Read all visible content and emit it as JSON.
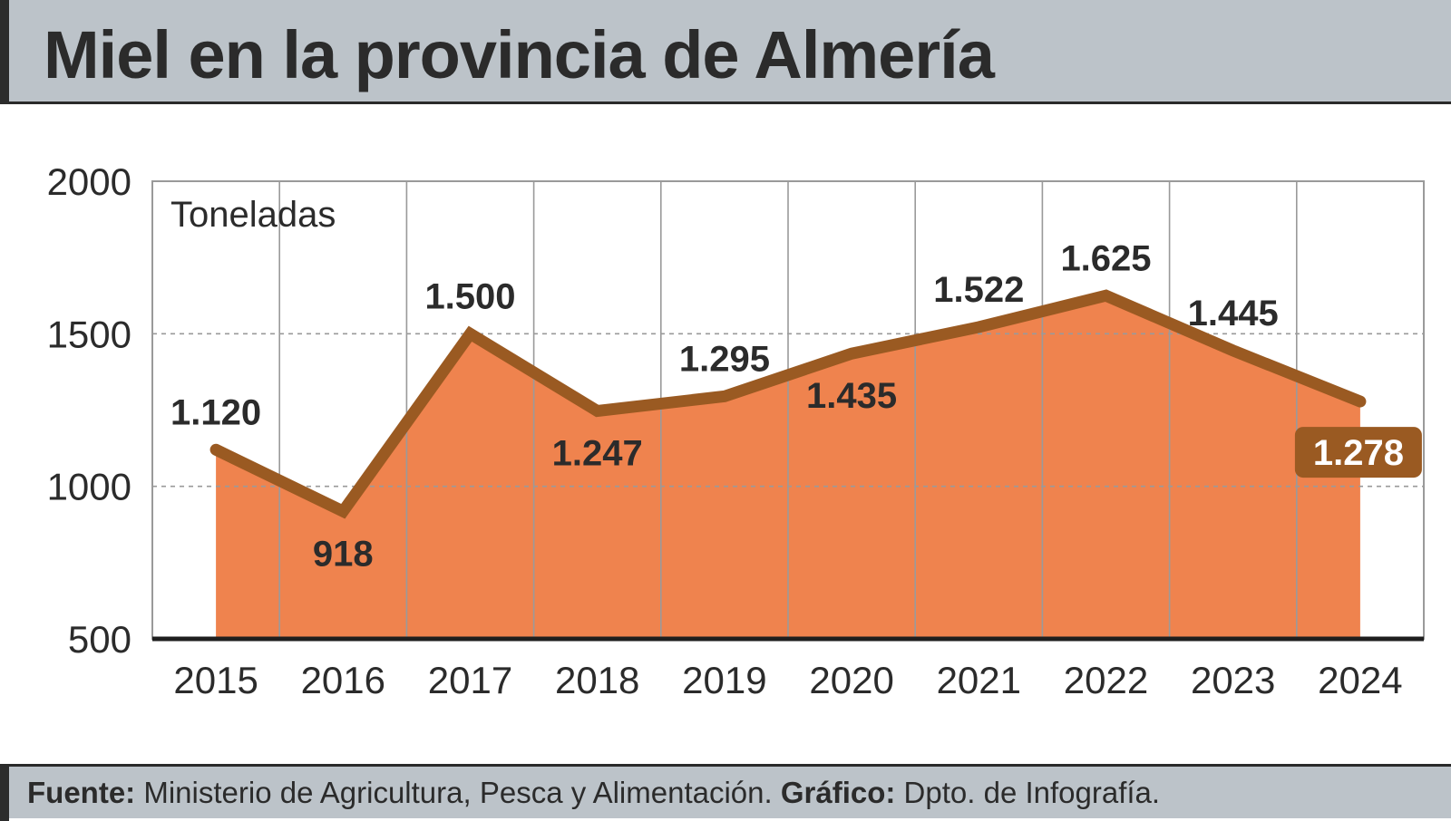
{
  "title": "Miel en la provincia de Almería",
  "footer": {
    "source_label": "Fuente:",
    "source_text": "Ministerio de Agricultura, Pesca y Alimentación.",
    "graphic_label": "Gráfico:",
    "graphic_text": "Dpto. de Infografía."
  },
  "colors": {
    "area_fill": "#ef834e",
    "line": "#9a5a22",
    "highlight_bg": "#9a5a22",
    "grid": "#9a9a9a",
    "text": "#2b2b2b",
    "header_bg": "#bcc3c9"
  },
  "chart_data": {
    "type": "area",
    "title": "Miel en la provincia de Almería",
    "unit_label": "Toneladas",
    "categories": [
      "2015",
      "2016",
      "2017",
      "2018",
      "2019",
      "2020",
      "2021",
      "2022",
      "2023",
      "2024"
    ],
    "values": [
      1120,
      918,
      1500,
      1247,
      1295,
      1435,
      1522,
      1625,
      1445,
      1278
    ],
    "value_labels": [
      "1.120",
      "918",
      "1.500",
      "1.247",
      "1.295",
      "1.435",
      "1.522",
      "1.625",
      "1.445",
      "1.278"
    ],
    "label_positions": [
      "above",
      "below",
      "above",
      "below",
      "above",
      "below",
      "above",
      "above",
      "above",
      "highlight"
    ],
    "yticks": [
      "500",
      "1000",
      "1500",
      "2000"
    ],
    "ylim": [
      500,
      2000
    ],
    "grid": "dashed horizontal at 1000 and 1500; vertical column dividers",
    "highlight": "2024"
  }
}
